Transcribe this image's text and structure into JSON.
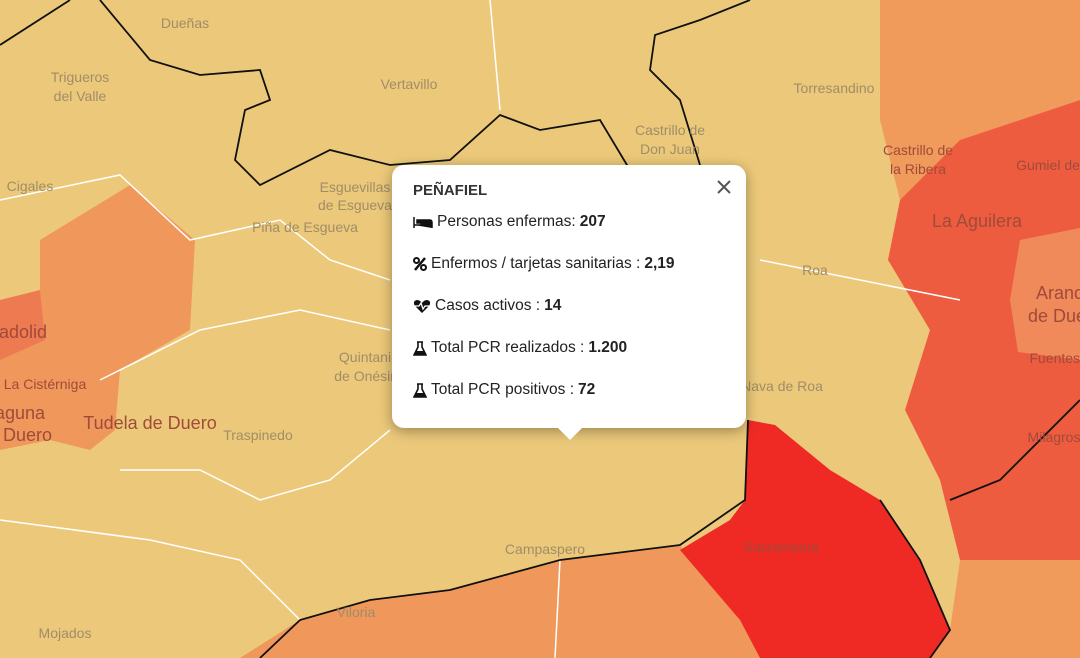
{
  "popup": {
    "title": "PEÑAFIEL",
    "fields": [
      {
        "label": "Personas enfermas:",
        "value": "207"
      },
      {
        "label": "Enfermos / tarjetas sanitarias :",
        "value": "2,19"
      },
      {
        "label": "Casos activos :",
        "value": "14"
      },
      {
        "label": "Total PCR realizados :",
        "value": "1.200"
      },
      {
        "label": "Total PCR positivos :",
        "value": "72"
      }
    ]
  },
  "map_labels": [
    {
      "lines": [
        "Dueñas"
      ]
    },
    {
      "lines": [
        "Trigueros",
        "del Valle"
      ]
    },
    {
      "lines": [
        "Vertavillo"
      ]
    },
    {
      "lines": [
        "Torresandino"
      ]
    },
    {
      "lines": [
        "Castrillo de",
        "Don Juan"
      ]
    },
    {
      "lines": [
        "Castrillo de",
        "la Ribera"
      ]
    },
    {
      "lines": [
        "Gumiel de"
      ]
    },
    {
      "lines": [
        "La Aguilera"
      ]
    },
    {
      "lines": [
        "Aranda",
        "de Duero"
      ]
    },
    {
      "lines": [
        "Fuentespina"
      ]
    },
    {
      "lines": [
        "Milagros"
      ]
    },
    {
      "lines": [
        "Cigales"
      ]
    },
    {
      "lines": [
        "Esguevillas",
        "de Esgueva"
      ]
    },
    {
      "lines": [
        "Piña de Esgueva"
      ]
    },
    {
      "lines": [
        "Roa"
      ]
    },
    {
      "lines": [
        "Quintanilla",
        "de Onésimo"
      ]
    },
    {
      "lines": [
        "Traspinedo"
      ]
    },
    {
      "lines": [
        "Tudela de Duero"
      ]
    },
    {
      "lines": [
        "La Cistérniga"
      ]
    },
    {
      "lines": [
        "Laguna",
        "de Duero"
      ]
    },
    {
      "lines": [
        "Valladolid"
      ]
    },
    {
      "lines": [
        "Campaspero"
      ]
    },
    {
      "lines": [
        "Sacramenia"
      ]
    },
    {
      "lines": [
        "Viloria"
      ]
    },
    {
      "lines": [
        "Mojados"
      ]
    },
    {
      "lines": [
        "Nava de Roa"
      ]
    }
  ]
}
